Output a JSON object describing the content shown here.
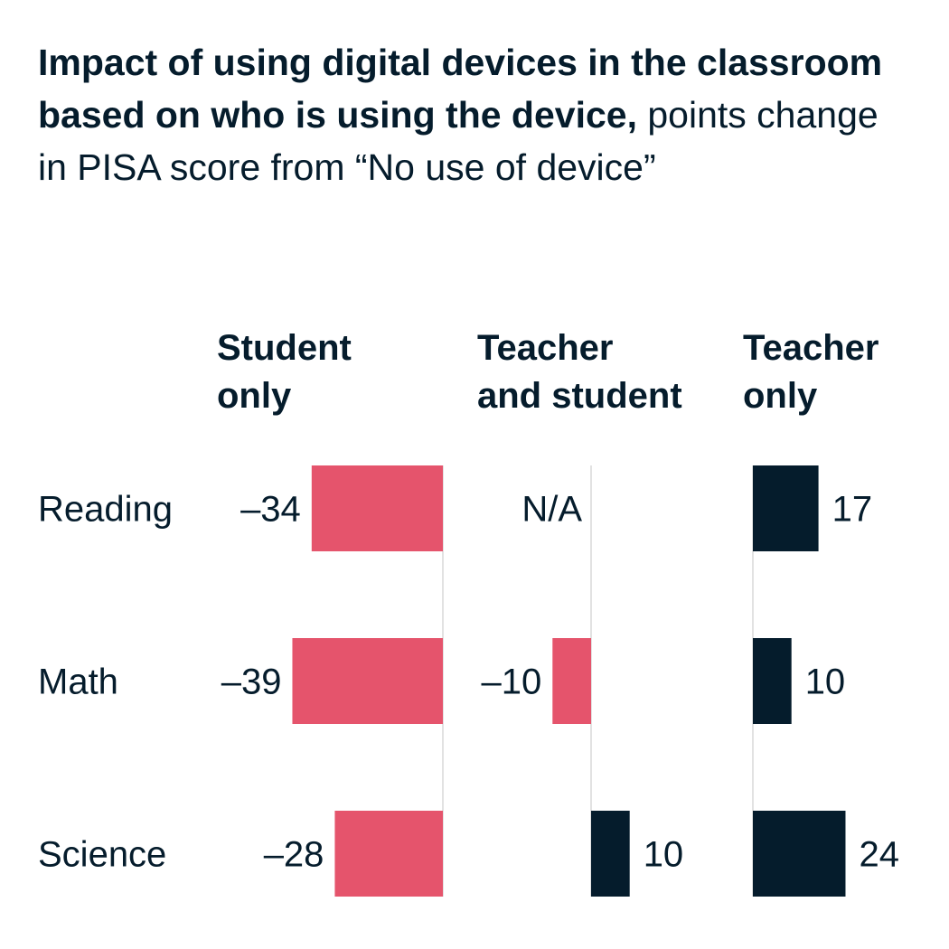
{
  "title": "Impact of using digital devices in the classroom based on who is using the device,",
  "subtitle": "points change in PISA score from “No use of device”",
  "colors": {
    "negative": "#E5546C",
    "positive": "#051C2C",
    "axis": "#D9D9D9",
    "text": "#051C2C"
  },
  "chart_data": {
    "type": "bar",
    "orientation": "horizontal",
    "categories": [
      "Reading",
      "Math",
      "Science"
    ],
    "series": [
      {
        "name": "Student only",
        "header_lines": [
          "Student",
          "only"
        ],
        "values": [
          -34,
          -39,
          -28
        ],
        "labels": [
          "–34",
          "–39",
          "–28"
        ]
      },
      {
        "name": "Teacher and student",
        "header_lines": [
          "Teacher",
          "and student"
        ],
        "values": [
          null,
          -10,
          10
        ],
        "labels": [
          "N/A",
          "–10",
          "10"
        ]
      },
      {
        "name": "Teacher only",
        "header_lines": [
          "Teacher",
          "only"
        ],
        "values": [
          17,
          10,
          24
        ],
        "labels": [
          "17",
          "10",
          "24"
        ]
      }
    ]
  }
}
